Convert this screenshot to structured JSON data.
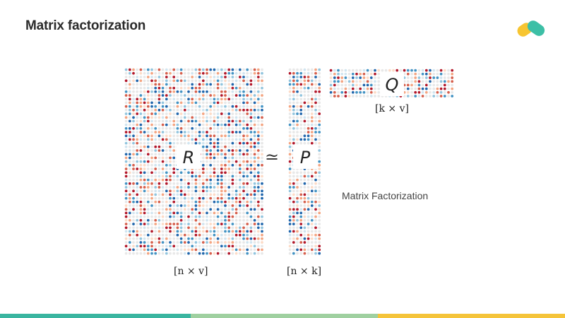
{
  "slide": {
    "title": "Matrix factorization",
    "side_caption": "Matrix Factorization",
    "approx_symbol": "≃"
  },
  "matrices": {
    "R": {
      "label": "R",
      "dim_label": "[n × v]"
    },
    "P": {
      "label": "P",
      "dim_label": "[n × k]"
    },
    "Q": {
      "label": "Q",
      "dim_label": "[k × v]"
    }
  },
  "colors": {
    "diverging_palette": [
      "#2166ac",
      "#4393c3",
      "#92c5de",
      "#d1e5f0",
      "#e8e8e8",
      "#fddbc7",
      "#f4a582",
      "#d6604d",
      "#b2182b"
    ],
    "logo_teal": "#3dbfa6",
    "logo_yellow": "#f7c531",
    "bar_segments": [
      "#3ab5a0",
      "#9fd0a0",
      "#f5c43a"
    ]
  },
  "icons": {
    "logo": "company-logo-icon"
  }
}
